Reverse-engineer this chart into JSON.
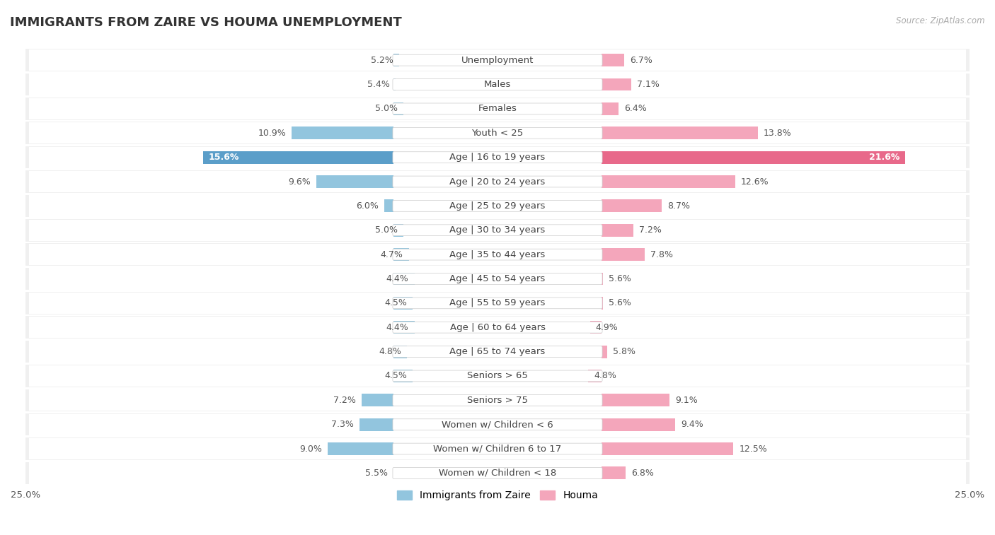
{
  "title": "IMMIGRANTS FROM ZAIRE VS HOUMA UNEMPLOYMENT",
  "source": "Source: ZipAtlas.com",
  "categories": [
    "Unemployment",
    "Males",
    "Females",
    "Youth < 25",
    "Age | 16 to 19 years",
    "Age | 20 to 24 years",
    "Age | 25 to 29 years",
    "Age | 30 to 34 years",
    "Age | 35 to 44 years",
    "Age | 45 to 54 years",
    "Age | 55 to 59 years",
    "Age | 60 to 64 years",
    "Age | 65 to 74 years",
    "Seniors > 65",
    "Seniors > 75",
    "Women w/ Children < 6",
    "Women w/ Children 6 to 17",
    "Women w/ Children < 18"
  ],
  "zaire_values": [
    5.2,
    5.4,
    5.0,
    10.9,
    15.6,
    9.6,
    6.0,
    5.0,
    4.7,
    4.4,
    4.5,
    4.4,
    4.8,
    4.5,
    7.2,
    7.3,
    9.0,
    5.5
  ],
  "houma_values": [
    6.7,
    7.1,
    6.4,
    13.8,
    21.6,
    12.6,
    8.7,
    7.2,
    7.8,
    5.6,
    5.6,
    4.9,
    5.8,
    4.8,
    9.1,
    9.4,
    12.5,
    6.8
  ],
  "zaire_color": "#92c5de",
  "houma_color": "#f4a6bb",
  "highlight_zaire_color": "#5b9ec9",
  "highlight_houma_color": "#e8698a",
  "highlight_row": 4,
  "xlim": 25.0,
  "row_bg_color": "#f0f0f0",
  "row_inner_color": "#ffffff",
  "legend_zaire": "Immigrants from Zaire",
  "legend_houma": "Houma",
  "title_fontsize": 13,
  "label_fontsize": 9.5,
  "value_fontsize": 9.0,
  "axis_label_fontsize": 9.5
}
